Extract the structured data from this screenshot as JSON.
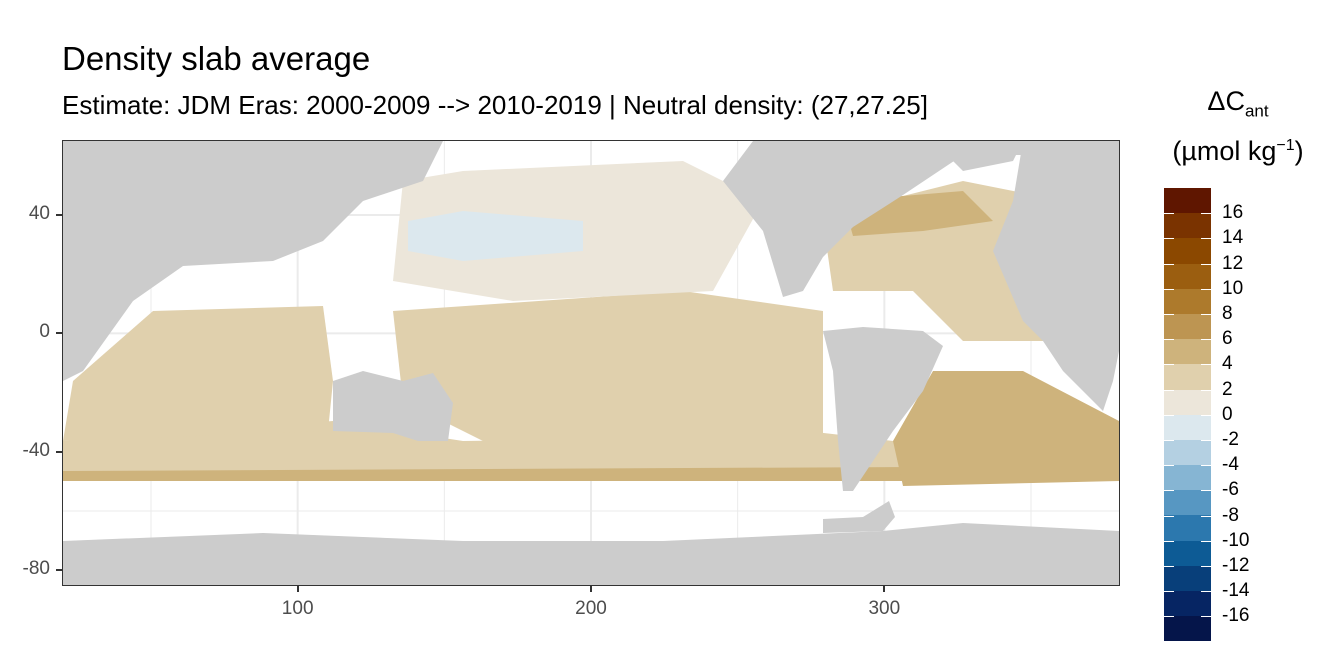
{
  "title": "Density slab average",
  "subtitle": "Estimate: JDM Eras: 2000-2009 --> 2010-2019 | Neutral density: (27,27.25]",
  "legend": {
    "title_line1": "ΔC",
    "title_sub": "ant",
    "title_line2_open": "(µmol kg",
    "title_sup": "−1",
    "title_line2_close": ")",
    "labels": [
      "16",
      "14",
      "12",
      "10",
      "8",
      "6",
      "4",
      "2",
      "0",
      "-2",
      "-4",
      "-6",
      "-8",
      "-10",
      "-12",
      "-14",
      "-16"
    ],
    "colors": [
      "#5f1600",
      "#7a3300",
      "#8b4800",
      "#9b5e10",
      "#ad7a2c",
      "#bd9552",
      "#ceb37c",
      "#e0d0ad",
      "#ece6da",
      "#dce8ee",
      "#b4d0e2",
      "#86b5d3",
      "#5797c2",
      "#2c78ae",
      "#0d5b95",
      "#083f7a",
      "#062563",
      "#05154a"
    ]
  },
  "colors": {
    "land": "#cccccc",
    "no_data": "#ffffff",
    "gridline": "#ebebeb",
    "mode_positive_weak": "#e0d0ad",
    "mode_positive": "#ceb37c",
    "mode_positive_strong": "#bd9552",
    "near_zero": "#ece6da",
    "slightly_negative": "#dce8ee"
  },
  "chart_data": {
    "type": "heatmap",
    "title": "Density slab average",
    "subtitle": "Estimate: JDM Eras: 2000-2009 --> 2010-2019 | Neutral density: (27,27.25]",
    "xlabel": "",
    "ylabel": "",
    "xlim": [
      20,
      380
    ],
    "ylim": [
      -85,
      65
    ],
    "x_ticks": [
      100,
      200,
      300
    ],
    "y_ticks": [
      40,
      0,
      -40,
      -80
    ],
    "colorbar": {
      "variable": "ΔCant (µmol kg−1)",
      "breaks": [
        16,
        14,
        12,
        10,
        8,
        6,
        4,
        2,
        0,
        -2,
        -4,
        -6,
        -8,
        -10,
        -12,
        -14,
        -16
      ],
      "range": [
        -18,
        18
      ]
    },
    "grid": true,
    "legend_position": "right"
  }
}
